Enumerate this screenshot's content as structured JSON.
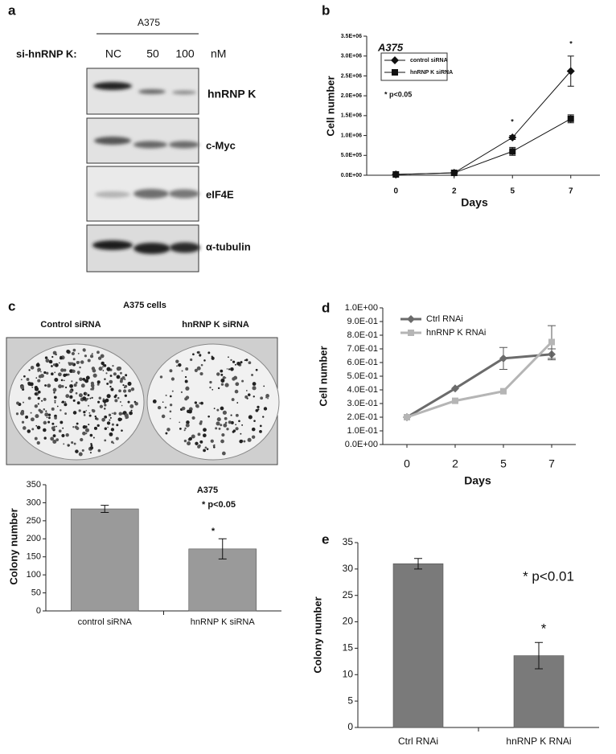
{
  "figure": {
    "panels": [
      "a",
      "b",
      "c",
      "d",
      "e"
    ],
    "blot": {
      "cell_line": "A375",
      "treatment_label": "si-hnRNP K:",
      "lanes": [
        "NC",
        "50",
        "100"
      ],
      "unit": "nM",
      "bands": [
        "hnRNP K",
        "c-Myc",
        "eIF4E",
        "α-tubulin"
      ]
    },
    "colony_photo": {
      "title": "A375 cells",
      "labels": [
        "Control siRNA",
        "hnRNP K siRNA"
      ]
    }
  },
  "chart_data": [
    {
      "type": "line",
      "title": "A375",
      "xlabel": "Days",
      "ylabel": "Cell number",
      "categories": [
        "0",
        "2",
        "5",
        "7"
      ],
      "series": [
        {
          "name": "control siRNA",
          "color": "#111111",
          "marker": "diamond",
          "values": [
            20000,
            60000,
            950000,
            2620000
          ],
          "errors": [
            null,
            null,
            50000,
            380000
          ]
        },
        {
          "name": "hnRNP K siRNA",
          "color": "#111111",
          "marker": "square",
          "values": [
            20000,
            60000,
            600000,
            1420000
          ],
          "errors": [
            null,
            null,
            100000,
            100000
          ]
        }
      ],
      "ylim": [
        0,
        3500000
      ],
      "yticks": [
        {
          "value": 0,
          "label": "0.0E+00"
        },
        {
          "value": 500000,
          "label": "5.0E+05"
        },
        {
          "value": 1000000,
          "label": "1.0E+06"
        },
        {
          "value": 1500000,
          "label": "1.5E+06"
        },
        {
          "value": 2000000,
          "label": "2.0E+06"
        },
        {
          "value": 2500000,
          "label": "2.5E+06"
        },
        {
          "value": 3000000,
          "label": "3.0E+06"
        },
        {
          "value": 3500000,
          "label": "3.5E+06"
        }
      ],
      "legend": "upper left",
      "legend_box": true,
      "annotations": [
        "*",
        "*",
        "* p<0.05"
      ]
    },
    {
      "type": "bar",
      "ylabel": "Colony number",
      "categories": [
        "control siRNA",
        "hnRNP K siRNA"
      ],
      "values": [
        283,
        172
      ],
      "errors": [
        10,
        28
      ],
      "color": "#9a9a9a",
      "ylim": [
        0,
        350
      ],
      "yticks": [
        0,
        50,
        100,
        150,
        200,
        250,
        300,
        350
      ],
      "annotations": [
        "A375",
        "* p<0.05",
        "*"
      ]
    },
    {
      "type": "line",
      "xlabel": "Days",
      "ylabel": "Cell number",
      "categories": [
        "0",
        "2",
        "5",
        "7"
      ],
      "series": [
        {
          "name": "Ctrl RNAi",
          "color": "#6b6b6b",
          "marker": "diamond",
          "values": [
            0.2,
            0.41,
            0.63,
            0.66
          ],
          "errors": [
            null,
            null,
            0.08,
            0.04
          ]
        },
        {
          "name": "hnRNP K RNAi",
          "color": "#b5b5b5",
          "marker": "square",
          "values": [
            0.2,
            0.32,
            0.39,
            0.75
          ],
          "errors": [
            null,
            null,
            null,
            0.12
          ]
        }
      ],
      "ylim": [
        0,
        1
      ],
      "yticks": [
        {
          "value": 0,
          "label": "0.0E+00"
        },
        {
          "value": 0.1,
          "label": "1.0E-01"
        },
        {
          "value": 0.2,
          "label": "2.0E-01"
        },
        {
          "value": 0.3,
          "label": "3.0E-01"
        },
        {
          "value": 0.4,
          "label": "4.0E-01"
        },
        {
          "value": 0.5,
          "label": "5.0E-01"
        },
        {
          "value": 0.6,
          "label": "6.0E-01"
        },
        {
          "value": 0.7,
          "label": "7.0E-01"
        },
        {
          "value": 0.8,
          "label": "8.0E-01"
        },
        {
          "value": 0.9,
          "label": "9.0E-01"
        },
        {
          "value": 1,
          "label": "1.0E+00"
        }
      ],
      "legend": "upper left",
      "legend_box": false
    },
    {
      "type": "bar",
      "ylabel": "Colony number",
      "categories": [
        "Ctrl RNAi",
        "hnRNP K RNAi"
      ],
      "values": [
        31,
        13.6
      ],
      "errors": [
        1,
        2.5
      ],
      "color": "#7a7a7a",
      "ylim": [
        0,
        35
      ],
      "yticks": [
        0,
        5,
        10,
        15,
        20,
        25,
        30,
        35
      ],
      "annotations": [
        "* p<0.01",
        "*"
      ]
    }
  ]
}
